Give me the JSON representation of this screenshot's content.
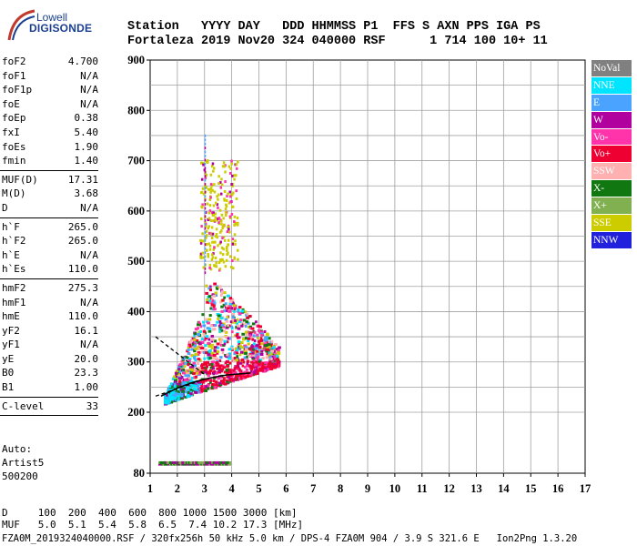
{
  "logo": {
    "line1": "Lowell",
    "line2": "DIGISONDE"
  },
  "header": {
    "line1": "Station   YYYY DAY   DDD HHMMSS P1  FFS S AXN PPS IGA PS",
    "line2": "Fortaleza 2019 Nov20 324 040000 RSF      1 714 100 10+ 11"
  },
  "params": [
    {
      "label": "foF2",
      "value": "4.700"
    },
    {
      "label": "foF1",
      "value": "N/A"
    },
    {
      "label": "foF1p",
      "value": "N/A"
    },
    {
      "label": "foE",
      "value": "N/A"
    },
    {
      "label": "foEp",
      "value": "0.38"
    },
    {
      "label": "fxI",
      "value": "5.40"
    },
    {
      "label": "foEs",
      "value": "1.90"
    },
    {
      "label": "fmin",
      "value": "1.40"
    },
    {
      "sep": true
    },
    {
      "label": "MUF(D)",
      "value": "17.31"
    },
    {
      "label": "M(D)",
      "value": "3.68"
    },
    {
      "label": "D",
      "value": "N/A"
    },
    {
      "sep": true
    },
    {
      "label": "h`F",
      "value": "265.0"
    },
    {
      "label": "h`F2",
      "value": "265.0"
    },
    {
      "label": "h`E",
      "value": "N/A"
    },
    {
      "label": "h`Es",
      "value": "110.0"
    },
    {
      "sep": true
    },
    {
      "label": "hmF2",
      "value": "275.3"
    },
    {
      "label": "hmF1",
      "value": "N/A"
    },
    {
      "label": "hmE",
      "value": "110.0"
    },
    {
      "label": "yF2",
      "value": "16.1"
    },
    {
      "label": "yF1",
      "value": "N/A"
    },
    {
      "label": "yE",
      "value": "20.0"
    },
    {
      "label": "B0",
      "value": "23.3"
    },
    {
      "label": "B1",
      "value": "1.00"
    },
    {
      "sep": true
    },
    {
      "label": "C-level",
      "value": "33"
    },
    {
      "sep": true
    }
  ],
  "auto": {
    "line1": "Auto:",
    "line2": "Artist5",
    "line3": "500200"
  },
  "legend": [
    {
      "label": "NoVal",
      "color": "#808080"
    },
    {
      "label": "NNE",
      "color": "#00e5ff"
    },
    {
      "label": "E",
      "color": "#4aa3ff"
    },
    {
      "label": "W",
      "color": "#b0009e"
    },
    {
      "label": "Vo-",
      "color": "#ff33aa"
    },
    {
      "label": "Vo+",
      "color": "#ee0033"
    },
    {
      "label": "SSW",
      "color": "#ffb0b0"
    },
    {
      "label": "X-",
      "color": "#117711"
    },
    {
      "label": "X+",
      "color": "#80b050"
    },
    {
      "label": "SSE",
      "color": "#cccc00"
    },
    {
      "label": "NNW",
      "color": "#2020dd"
    }
  ],
  "bottom": {
    "line1": "D     100  200  400  600  800 1000 1500 3000 [km]",
    "line2": "MUF   5.0  5.1  5.4  5.8  6.5  7.4 10.2 17.3 [MHz]"
  },
  "footer": "FZA0M_2019324040000.RSF / 320fx256h 50 kHz 5.0 km / DPS-4 FZA0M 904 / 3.9 S 321.6 E   Ion2Png 1.3.20",
  "chart_data": {
    "type": "scatter",
    "title": "",
    "xlabel": "",
    "ylabel": "",
    "xlim": [
      1,
      17
    ],
    "ylim": [
      80,
      900
    ],
    "x_ticks": [
      "1",
      "2",
      "3",
      "4",
      "5",
      "6",
      "7",
      "8",
      "9",
      "10",
      "11",
      "12",
      "13",
      "14",
      "15",
      "16",
      "17"
    ],
    "y_ticks": [
      "80",
      "200",
      "300",
      "400",
      "500",
      "600",
      "700",
      "800",
      "900"
    ],
    "grid": true,
    "clusters": [
      {
        "name": "E-region echoes",
        "x_range": [
          1.3,
          3.9
        ],
        "y_range": [
          95,
          100
        ],
        "colors": [
          "X+",
          "W",
          "X-"
        ]
      },
      {
        "name": "F-region trace",
        "x_range": [
          1.5,
          5.7
        ],
        "y_range": [
          215,
          480
        ],
        "colors": [
          "Vo+",
          "Vo-",
          "W",
          "E",
          "NNE",
          "SSE",
          "X-",
          "SSW"
        ]
      },
      {
        "name": "upper echoes",
        "x_range": [
          2.8,
          4.2
        ],
        "y_range": [
          480,
          700
        ],
        "colors": [
          "SSE",
          "Vo-",
          "W"
        ]
      }
    ],
    "profile_line": {
      "x": [
        1.4,
        2.0,
        2.6,
        3.2,
        3.8,
        4.7
      ],
      "y": [
        232,
        248,
        260,
        268,
        274,
        278
      ]
    },
    "dashed_lines": [
      {
        "x": [
          1.2,
          3.0
        ],
        "y": [
          350,
          275
        ]
      },
      {
        "x": [
          1.2,
          2.8
        ],
        "y": [
          232,
          262
        ]
      }
    ]
  }
}
